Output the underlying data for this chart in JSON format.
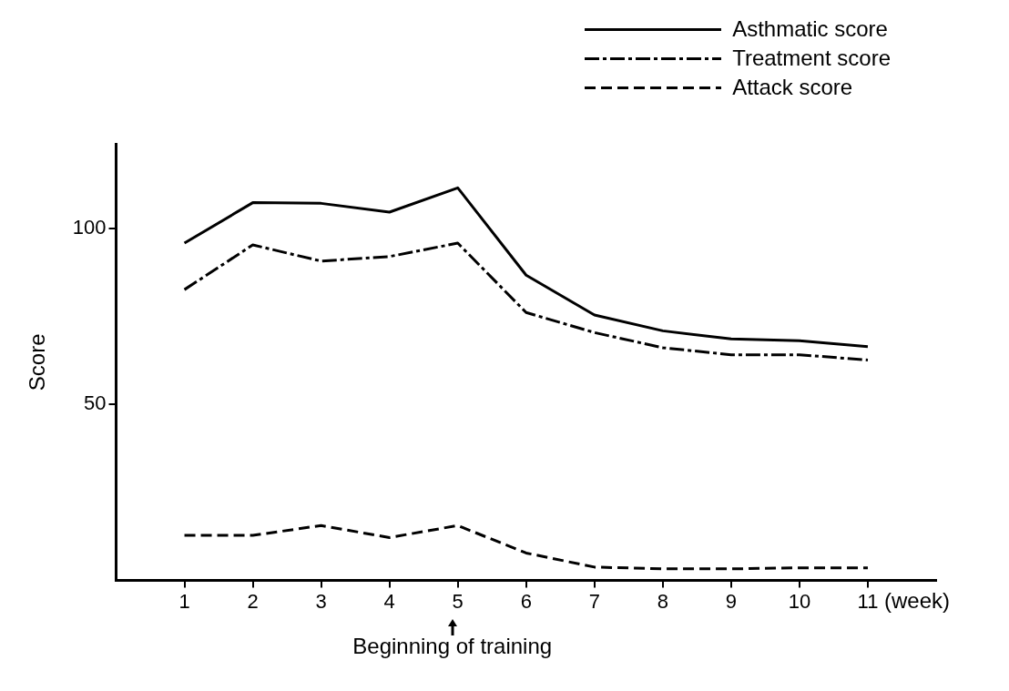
{
  "chart_data": {
    "type": "line",
    "xlabel": "(week)",
    "ylabel": "Score",
    "x": [
      1,
      2,
      3,
      4,
      5,
      6,
      7,
      8,
      9,
      10,
      11
    ],
    "xlim": [
      0,
      12
    ],
    "xticks": [
      1,
      2,
      3,
      4,
      5,
      6,
      7,
      8,
      9,
      10,
      11
    ],
    "ylim": [
      0,
      124
    ],
    "yticks": [
      50,
      100
    ],
    "grid": false,
    "legend": "top right",
    "marker": "none",
    "series": [
      {
        "name": "Asthmatic score",
        "color": "#000000",
        "line_style": "solid",
        "values": [
          95.8,
          107.3,
          107.1,
          104.6,
          111.5,
          86.7,
          75.4,
          70.9,
          68.6,
          68.1,
          66.4
        ]
      },
      {
        "name": "Treatment score",
        "color": "#000000",
        "line_style": "dashdot",
        "values": [
          82.6,
          95.3,
          90.7,
          92,
          95.8,
          76.1,
          70.4,
          66.1,
          64.1,
          64.1,
          62.6
        ]
      },
      {
        "name": "Attack score",
        "color": "#000000",
        "line_style": "dashed",
        "values": [
          12.8,
          12.8,
          15.6,
          12.2,
          15.6,
          7.8,
          3.8,
          3.3,
          3.3,
          3.6,
          3.6
        ]
      }
    ],
    "annotations": [
      "Beginning of training"
    ]
  }
}
